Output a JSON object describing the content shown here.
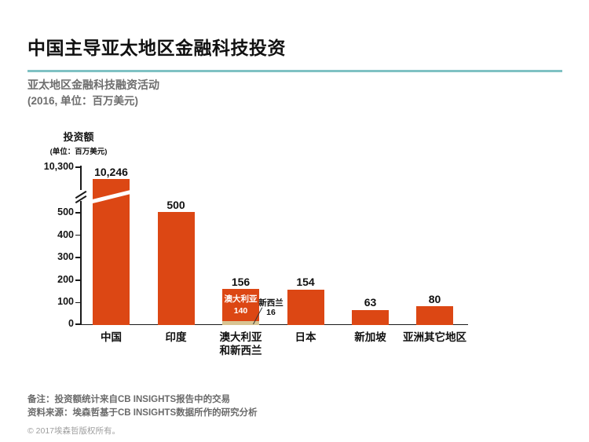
{
  "header": {
    "title": "中国主导亚太地区金融科技投资",
    "subtitle": "亚太地区金融科技融资活动",
    "subtitle_detail": "(2016, 单位：百万美元)"
  },
  "chart_data": {
    "type": "bar",
    "title": "亚太地区金融科技融资活动",
    "year": "2016",
    "unit": "百万美元",
    "y_axis": {
      "title": "投资额",
      "unit_label": "(单位：百万美元)",
      "ticks": [
        "10,300",
        "500",
        "400",
        "300",
        "200",
        "100",
        "0"
      ],
      "axis_break": "between 500 and 10,300",
      "grid": false,
      "legend": false
    },
    "categories": [
      "中国",
      "印度",
      "澳大利亚\n和新西兰",
      "日本",
      "新加坡",
      "亚洲其它地区"
    ],
    "values": [
      10246,
      500,
      156,
      154,
      63,
      80
    ],
    "value_labels": [
      "10,246",
      "500",
      "156",
      "154",
      "63",
      "80"
    ],
    "stacked_segments": [
      {
        "category": "澳大利亚和新西兰",
        "name": "澳大利亚",
        "value": 140,
        "value_label": "140",
        "color": "#DC4714"
      },
      {
        "category": "澳大利亚和新西兰",
        "name": "新西兰",
        "value": 16,
        "value_label": "16",
        "color": "#D8C492"
      }
    ],
    "colors": {
      "bar": "#DC4714",
      "stack_secondary": "#D8C492",
      "accent_rule": "#7FC1C3"
    }
  },
  "footer": {
    "note": "备注：投资额统计来自CB INSIGHTS报告中的交易",
    "source": "资料来源：埃森哲基于CB INSIGHTS数据所作的研究分析",
    "copyright": "© 2017埃森哲版权所有。"
  }
}
